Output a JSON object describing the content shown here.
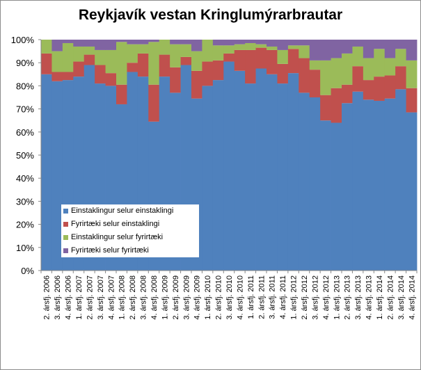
{
  "chart_data": {
    "type": "bar",
    "stacked": true,
    "title": "Reykjavík vestan Kringlumýrarbrautar",
    "xlabel": "",
    "ylabel": "",
    "ylim": [
      0,
      100
    ],
    "yticks": [
      "0%",
      "10%",
      "20%",
      "30%",
      "40%",
      "50%",
      "60%",
      "70%",
      "80%",
      "90%",
      "100%"
    ],
    "grid": false,
    "legend_position": "lower-left",
    "categories": [
      "2. ársfj. 2006",
      "3. ársfj. 2006",
      "4. ársfj. 2006",
      "1. ársfj. 2007",
      "2. ársfj. 2007",
      "3. ársfj. 2007",
      "4. ársfj. 2007",
      "1. ársfj. 2008",
      "2. ársfj. 2008",
      "3. ársfj. 2008",
      "4. ársfj. 2008",
      "1. ársfj. 2009",
      "2. ársfj. 2009",
      "3. ársfj. 2009",
      "4. ársfj. 2009",
      "1. ársfj. 2010",
      "2. ársfj. 2010",
      "3. ársfj. 2010",
      "4. ársfj. 2010",
      "1. ársfj. 2011",
      "2. ársfj. 2011",
      "3. ársfj. 2011",
      "4. ársfj. 2011",
      "1. ársfj. 2012",
      "2. ársfj. 2012",
      "3. ársfj. 2012",
      "4. ársfj. 2012",
      "1. ársfj. 2013",
      "2. ársfj. 2013",
      "3. ársfj. 2013",
      "4. ársfj. 2013",
      "1. ársfj. 2014",
      "2. ársfj. 2014",
      "3. ársfj. 2014",
      "4. ársfj. 2014"
    ],
    "x_tick_labels": [
      "2. ársfj. 2006",
      "3. ársfj. 2006",
      "4. ársfj. 2006",
      "1. ársfj. 2007",
      "2. ársfj. 2007",
      "3. ársfj. 2007",
      "4. ársfj. 2007",
      "1. ársfj. 2008",
      "2. ársfj. 2008",
      "3. ársfj. 2008",
      "4. ársfj. 2008",
      "1. ársfj. 2009",
      "2. ársfj. 2009",
      "3. ársfj. 2009",
      "4. ársfj. 2009",
      "1. ársfj. 2010",
      "2. ársfj. 2010",
      "3. ársfj. 2010",
      "4. ársfj. 2010",
      "1. ársfj. 2011",
      "2. ársfj. 2011",
      "3. ársfj. 2011",
      "4. ársfj. 2011",
      "1. ársfj. 2012",
      "2. ársfj. 2012",
      "3. ársfj. 2012",
      "4. ársfj. 2012",
      "1. ársfj. 2013",
      "2. ársfj. 2013",
      "3. ársfj. 2013",
      "4. ársfj. 2013",
      "1. ársfj. 2014",
      "2. ársfj. 2014",
      "3. ársfj. 2014",
      "4. ársfj. 2014"
    ],
    "series": [
      {
        "name": "Einstaklingur selur einstaklingi",
        "color": "#4f81bd",
        "values": [
          85,
          82,
          82.5,
          84,
          89,
          81,
          80,
          72,
          86,
          84,
          64.5,
          84,
          77,
          89,
          74.5,
          80,
          82.5,
          90.5,
          86.5,
          81,
          87.5,
          85,
          81,
          85.5,
          77,
          75,
          65,
          64,
          72.5,
          77.5,
          74,
          73.5,
          74.5,
          78.5,
          68.5
        ]
      },
      {
        "name": "Fyrirtæki selur einstaklingi",
        "color": "#c0504d",
        "values": [
          9,
          4,
          3.5,
          6.5,
          4.5,
          8,
          5.5,
          8.5,
          4,
          10,
          16,
          9.5,
          11,
          3.5,
          12,
          10.5,
          8.5,
          3.5,
          9,
          14.5,
          9,
          10.5,
          8.5,
          10.5,
          15,
          12,
          11,
          15,
          8,
          11,
          8.5,
          10.5,
          10,
          10,
          10.5
        ]
      },
      {
        "name": "Einstaklingur selur fyrirtæki",
        "color": "#9bbb59",
        "values": [
          6,
          9,
          12.5,
          6.5,
          3.5,
          6.5,
          10,
          18.5,
          8,
          4,
          18.5,
          6.5,
          10,
          5.5,
          8.5,
          9.5,
          6.5,
          3.5,
          2.5,
          3,
          1.5,
          1.5,
          6,
          1.5,
          5.5,
          4,
          15,
          13,
          13.5,
          8.5,
          9.5,
          12,
          7.5,
          7.5,
          12
        ]
      },
      {
        "name": "Fyrirtæki selur fyrirtæki",
        "color": "#8064a2",
        "values": [
          0,
          5,
          1.5,
          3,
          3,
          4.5,
          4.5,
          1,
          2,
          2,
          1,
          0,
          2,
          2,
          5,
          0,
          2.5,
          2.5,
          2,
          1.5,
          2,
          3,
          4.5,
          2.5,
          2.5,
          9,
          9,
          8,
          6,
          3,
          8,
          4,
          8,
          4,
          9
        ]
      }
    ]
  }
}
